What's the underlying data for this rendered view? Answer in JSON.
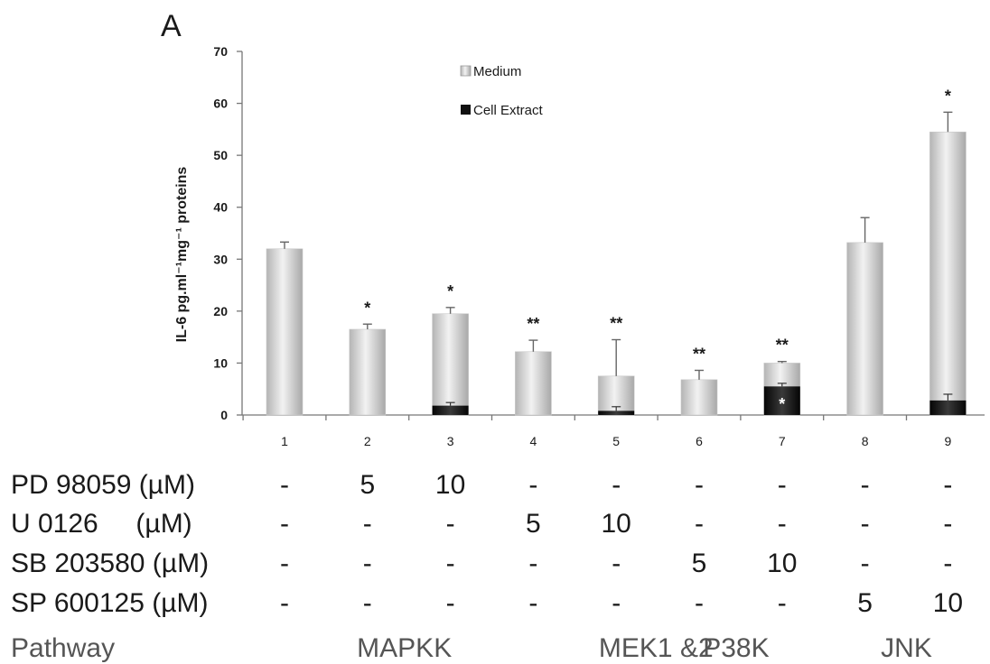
{
  "chart_data": {
    "type": "bar",
    "panel_label": "A",
    "ylabel": "IL-6 pg.ml⁻¹mg⁻¹ proteins",
    "ylim": [
      0,
      70
    ],
    "yticks": [
      0,
      10,
      20,
      30,
      40,
      50,
      60,
      70
    ],
    "categories": [
      "1",
      "2",
      "3",
      "4",
      "5",
      "6",
      "7",
      "8",
      "9"
    ],
    "stacked": true,
    "grid": false,
    "legend_position": "top-center",
    "series": [
      {
        "name": "Medium",
        "color": "#d4d4d4",
        "values": [
          32,
          16.5,
          19.5,
          12.2,
          7.5,
          6.8,
          10,
          33.2,
          54.5
        ],
        "error": [
          1.3,
          1,
          1.2,
          2.2,
          7,
          1.8,
          0.3,
          4.8,
          3.8
        ]
      },
      {
        "name": "Cell Extract",
        "color": "#111111",
        "values": [
          0,
          0,
          1.8,
          0,
          0.8,
          0,
          5.5,
          0,
          2.8
        ],
        "error": [
          0,
          0,
          0.6,
          0,
          0.8,
          0,
          0.6,
          0,
          1.2
        ]
      }
    ],
    "significance": [
      "",
      "*",
      "*",
      "**",
      "**",
      "**",
      "**",
      "",
      "*"
    ],
    "cell_extract_significance": [
      "",
      "",
      "",
      "",
      "",
      "",
      "*",
      "",
      ""
    ]
  },
  "table": {
    "rows": [
      {
        "label": "PD 98059 (µM)",
        "cells": [
          "-",
          "5",
          "10",
          "-",
          "-",
          "-",
          "-",
          "-",
          "-"
        ]
      },
      {
        "label": "U 0126     (µM)",
        "cells": [
          "-",
          "-",
          "-",
          "5",
          "10",
          "-",
          "-",
          "-",
          "-"
        ]
      },
      {
        "label": "SB 203580 (µM)",
        "cells": [
          "-",
          "-",
          "-",
          "-",
          "-",
          "5",
          "10",
          "-",
          "-"
        ]
      },
      {
        "label": "SP 600125 (µM)",
        "cells": [
          "-",
          "-",
          "-",
          "-",
          "-",
          "-",
          "-",
          "5",
          "10"
        ]
      }
    ],
    "pathway_label": "Pathway",
    "pathways": [
      "MAPKK",
      "MEK1 &2",
      "P38K",
      "JNK"
    ]
  }
}
